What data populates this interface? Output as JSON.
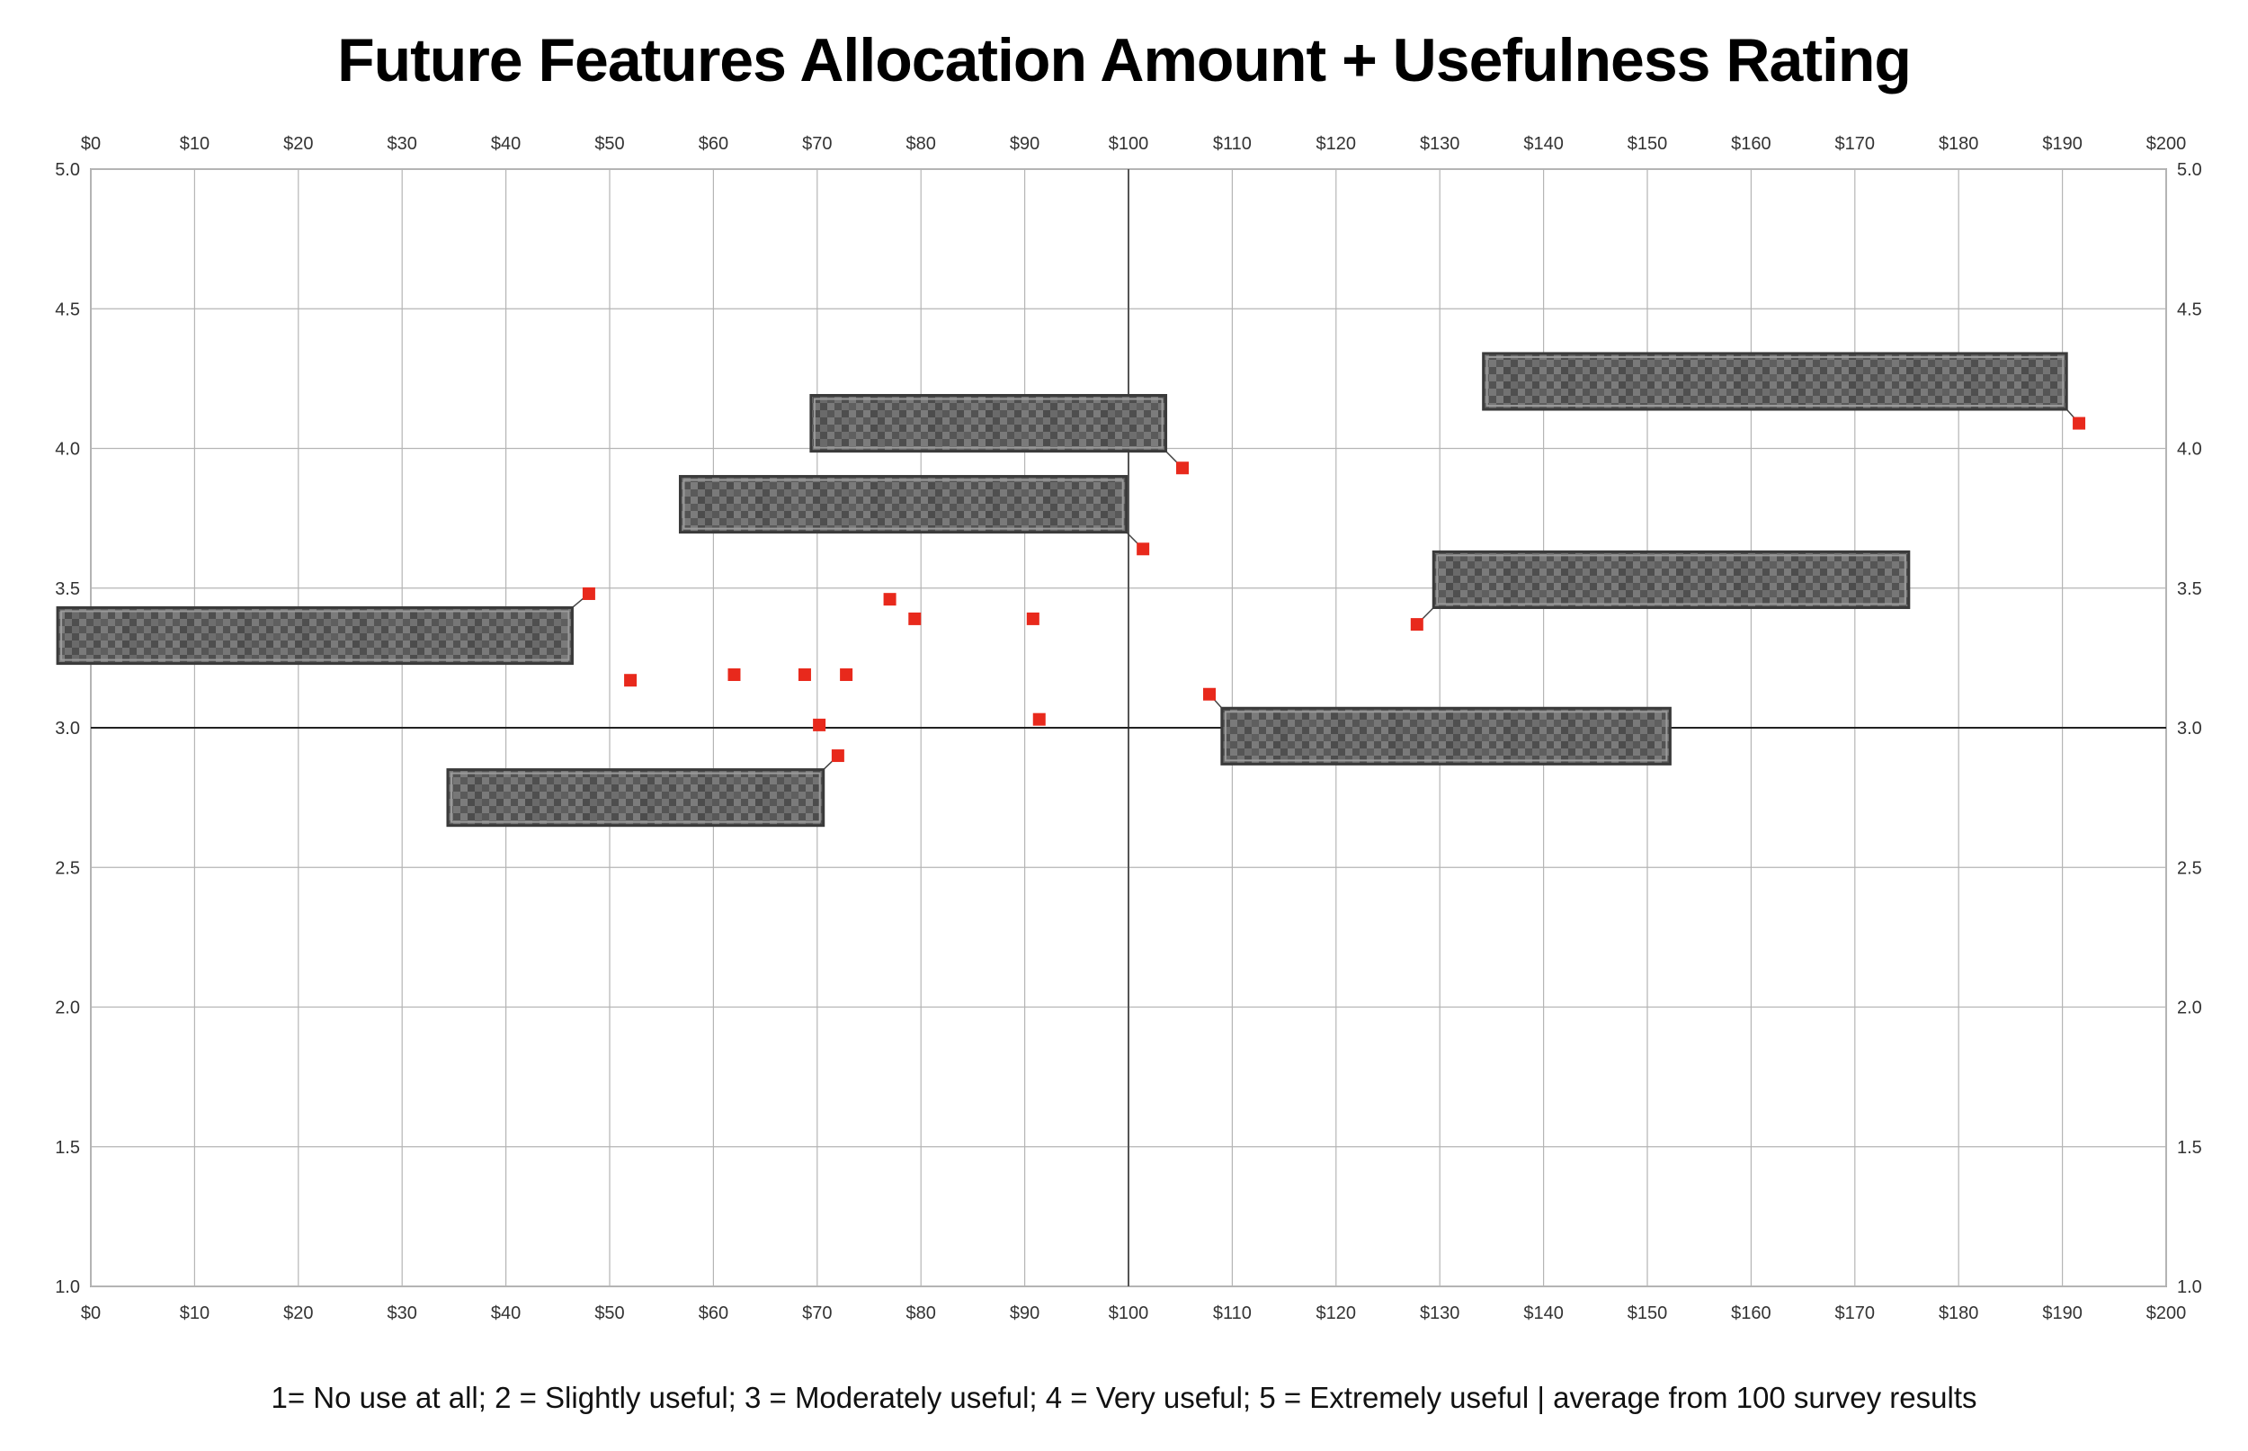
{
  "title": "Future Features Allocation Amount + Usefulness Rating",
  "footnote": "1= No use at all; 2 = Slightly useful; 3 = Moderately useful; 4 = Very useful; 5 = Extremely useful | average from 100 survey results",
  "colors": {
    "point": "#e8291c",
    "grid": "#b5b5b5",
    "reference_line": "#222222",
    "axis": "#666666",
    "label_box": "#6b6b6b"
  },
  "chart_data": {
    "type": "scatter",
    "title": "Future Features Allocation Amount + Usefulness Rating",
    "xlim": [
      0,
      200
    ],
    "ylim": [
      1.0,
      5.0
    ],
    "x_ticks": [
      "$0",
      "$10",
      "$20",
      "$30",
      "$40",
      "$50",
      "$60",
      "$70",
      "$80",
      "$90",
      "$100",
      "$110",
      "$120",
      "$130",
      "$140",
      "$150",
      "$160",
      "$170",
      "$180",
      "$190",
      "$200"
    ],
    "y_ticks": [
      "1.0",
      "1.5",
      "2.0",
      "2.5",
      "3.0",
      "3.5",
      "4.0",
      "4.5",
      "5.0"
    ],
    "x_axes": "top and bottom",
    "y_axes": "left and right",
    "grid": true,
    "reference_lines": {
      "x": 100,
      "y": 3.0
    },
    "points": [
      {
        "x": 48.0,
        "y": 3.48
      },
      {
        "x": 52.0,
        "y": 3.17
      },
      {
        "x": 62.0,
        "y": 3.19
      },
      {
        "x": 68.8,
        "y": 3.19
      },
      {
        "x": 70.2,
        "y": 3.01
      },
      {
        "x": 72.0,
        "y": 2.9
      },
      {
        "x": 72.8,
        "y": 3.19
      },
      {
        "x": 77.0,
        "y": 3.46
      },
      {
        "x": 79.4,
        "y": 3.39
      },
      {
        "x": 90.8,
        "y": 3.39
      },
      {
        "x": 91.4,
        "y": 3.03
      },
      {
        "x": 101.4,
        "y": 3.64
      },
      {
        "x": 105.2,
        "y": 3.93
      },
      {
        "x": 107.8,
        "y": 3.12
      },
      {
        "x": 127.8,
        "y": 3.37
      },
      {
        "x": 191.6,
        "y": 4.09
      }
    ],
    "redacted_labels": [
      {
        "x0": -3.2,
        "x1": 46.4,
        "y0": 3.23,
        "y1": 3.43,
        "point": 0
      },
      {
        "x0": 34.4,
        "x1": 70.6,
        "y0": 2.65,
        "y1": 2.85,
        "point": 5
      },
      {
        "x0": 56.8,
        "x1": 99.8,
        "y0": 3.7,
        "y1": 3.9,
        "point": 11
      },
      {
        "x0": 69.4,
        "x1": 103.6,
        "y0": 3.99,
        "y1": 4.19,
        "point": 12
      },
      {
        "x0": 109.0,
        "x1": 152.2,
        "y0": 2.87,
        "y1": 3.07,
        "point": 13
      },
      {
        "x0": 129.4,
        "x1": 175.2,
        "y0": 3.43,
        "y1": 3.63,
        "point": 14
      },
      {
        "x0": 134.2,
        "x1": 190.4,
        "y0": 4.14,
        "y1": 4.34,
        "point": 15
      }
    ]
  }
}
